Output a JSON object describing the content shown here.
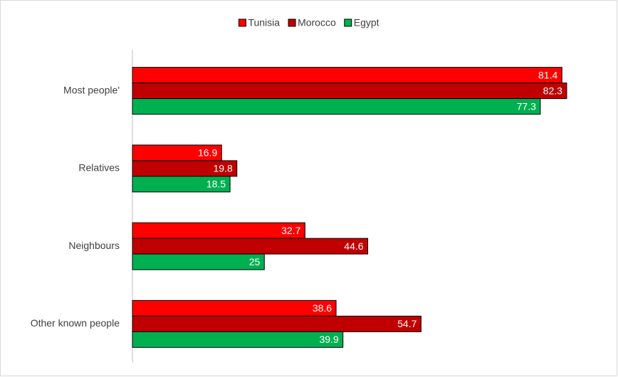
{
  "chart_data": {
    "type": "bar",
    "orientation": "horizontal",
    "categories": [
      "Most people'",
      "Relatives",
      "Neighbours",
      "Other known people"
    ],
    "series": [
      {
        "name": "Tunisia",
        "color": "#ff0000",
        "values": [
          81.4,
          16.9,
          32.7,
          38.6
        ]
      },
      {
        "name": "Morocco",
        "color": "#c00000",
        "values": [
          82.3,
          19.8,
          44.6,
          54.7
        ]
      },
      {
        "name": "Egypt",
        "color": "#00b050",
        "values": [
          77.3,
          18.5,
          25,
          39.9
        ]
      }
    ],
    "xlim": [
      0,
      90
    ],
    "legend": "top"
  }
}
